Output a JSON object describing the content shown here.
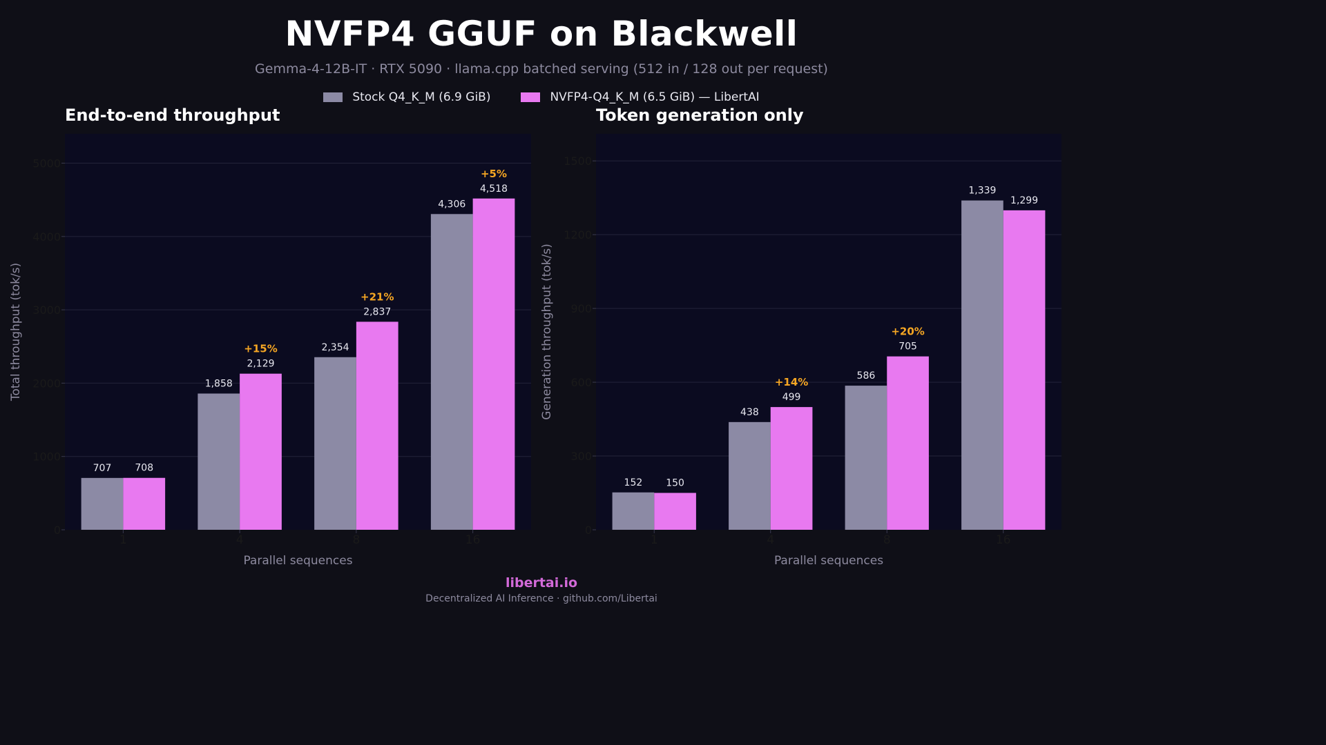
{
  "title": "NVFP4 GGUF on Blackwell",
  "subtitle": "Gemma-4-12B-IT  ·  RTX 5090  ·  llama.cpp batched serving (512 in / 128 out per request)",
  "legend": [
    {
      "label": "Stock Q4_K_M (6.9 GiB)",
      "color": "#8c8aa5"
    },
    {
      "label": "NVFP4-Q4_K_M (6.5 GiB) — LibertAI",
      "color": "#e879f0"
    }
  ],
  "footer": {
    "brand": "libertai.io",
    "tagline": "Decentralized AI Inference  ·  github.com/Libertai"
  },
  "colors": {
    "background": "#0f0f17",
    "panel": "#0b0b20",
    "stock": "#8c8aa5",
    "nvfp4": "#e879f0",
    "gain": "#f5a623",
    "grid": "#24243a"
  },
  "chart_data": [
    {
      "type": "bar",
      "title": "End-to-end throughput",
      "xlabel": "Parallel sequences",
      "ylabel": "Total throughput (tok/s)",
      "categories": [
        "1",
        "4",
        "8",
        "16"
      ],
      "ylim": [
        0,
        5400
      ],
      "yticks": [
        0,
        1000,
        2000,
        3000,
        4000,
        5000
      ],
      "grid": true,
      "series": [
        {
          "name": "Stock Q4_K_M (6.9 GiB)",
          "values": [
            707,
            1858,
            2354,
            4306
          ],
          "labels": [
            "707",
            "1,858",
            "2,354",
            "4,306"
          ]
        },
        {
          "name": "NVFP4-Q4_K_M (6.5 GiB) — LibertAI",
          "values": [
            708,
            2129,
            2837,
            4518
          ],
          "labels": [
            "708",
            "2,129",
            "2,837",
            "4,518"
          ]
        }
      ],
      "annotations": [
        "",
        "+15%",
        "+21%",
        "+5%"
      ]
    },
    {
      "type": "bar",
      "title": "Token generation only",
      "xlabel": "Parallel sequences",
      "ylabel": "Generation throughput (tok/s)",
      "categories": [
        "1",
        "4",
        "8",
        "16"
      ],
      "ylim": [
        0,
        1610
      ],
      "yticks": [
        0,
        300,
        600,
        900,
        1200,
        1500
      ],
      "grid": true,
      "series": [
        {
          "name": "Stock Q4_K_M (6.9 GiB)",
          "values": [
            152,
            438,
            586,
            1339
          ],
          "labels": [
            "152",
            "438",
            "586",
            "1,339"
          ]
        },
        {
          "name": "NVFP4-Q4_K_M (6.5 GiB) — LibertAI",
          "values": [
            150,
            499,
            705,
            1299
          ],
          "labels": [
            "150",
            "499",
            "705",
            "1,299"
          ]
        }
      ],
      "annotations": [
        "",
        "+14%",
        "+20%",
        ""
      ]
    }
  ]
}
